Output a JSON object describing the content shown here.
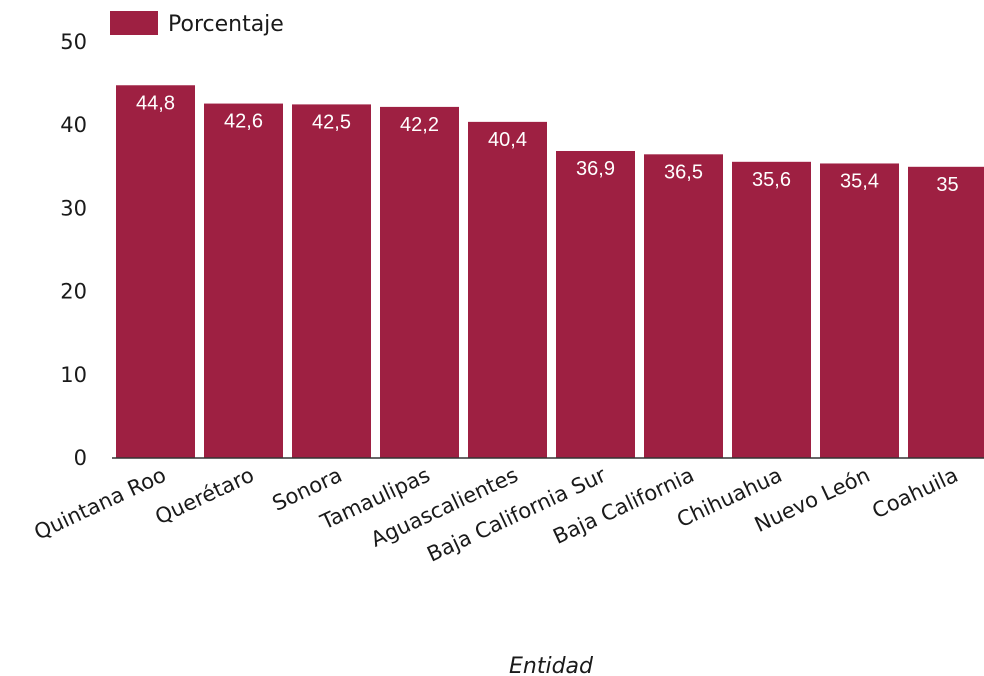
{
  "chart_data": {
    "type": "bar",
    "categories": [
      "Quintana Roo",
      "Querétaro",
      "Sonora",
      "Tamaulipas",
      "Aguascalientes",
      "Baja California Sur",
      "Baja California",
      "Chihuahua",
      "Nuevo León",
      "Coahuila"
    ],
    "series": [
      {
        "name": "Porcentaje",
        "values": [
          44.8,
          42.6,
          42.5,
          42.2,
          40.4,
          36.9,
          36.5,
          35.6,
          35.4,
          35
        ],
        "value_labels": [
          "44,8",
          "42,6",
          "42,5",
          "42,2",
          "40,4",
          "36,9",
          "36,5",
          "35,6",
          "35,4",
          "35"
        ]
      }
    ],
    "y_ticks": [
      "0",
      "10",
      "20",
      "30",
      "40",
      "50"
    ],
    "ylim": [
      0,
      50
    ],
    "xlabel": "Entidad",
    "ylabel": "",
    "legend_position": "top-left",
    "grid": false,
    "bar_color": "#9e2042"
  }
}
